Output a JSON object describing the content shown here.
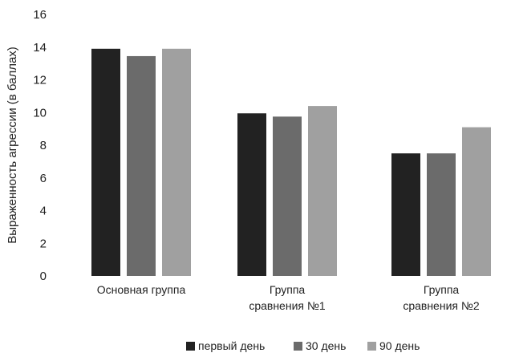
{
  "chart_data": {
    "type": "bar",
    "title": "",
    "xlabel": "",
    "ylabel": "Выраженность агрессии (в баллах)",
    "ylim": [
      0,
      16
    ],
    "yticks": [
      0,
      2,
      4,
      6,
      8,
      10,
      12,
      14,
      16
    ],
    "grid": false,
    "legend_position": "bottom",
    "categories": [
      [
        "Основная группа"
      ],
      [
        "Группа",
        "сравнения №1"
      ],
      [
        "Группа",
        "сравнения №2"
      ]
    ],
    "series": [
      {
        "name": "первый день",
        "color": "#222222",
        "values": [
          13.9,
          9.95,
          7.5
        ]
      },
      {
        "name": "30 день",
        "color": "#6b6b6b",
        "values": [
          13.45,
          9.75,
          7.5
        ]
      },
      {
        "name": "90 день",
        "color": "#a0a0a0",
        "values": [
          13.9,
          10.4,
          9.1
        ]
      }
    ]
  }
}
